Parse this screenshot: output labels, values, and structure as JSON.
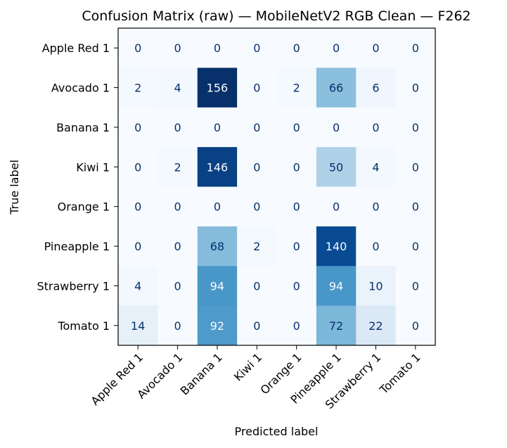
{
  "chart_data": {
    "type": "heatmap",
    "title": "Confusion Matrix (raw) — MobileNetV2 RGB Clean — F262",
    "xlabel": "Predicted label",
    "ylabel": "True label",
    "row_labels": [
      "Apple Red 1",
      "Avocado 1",
      "Banana 1",
      "Kiwi 1",
      "Orange 1",
      "Pineapple 1",
      "Strawberry 1",
      "Tomato 1"
    ],
    "col_labels": [
      "Apple Red 1",
      "Avocado 1",
      "Banana 1",
      "Kiwi 1",
      "Orange 1",
      "Pineapple 1",
      "Strawberry 1",
      "Tomato 1"
    ],
    "matrix": [
      [
        0,
        0,
        0,
        0,
        0,
        0,
        0,
        0
      ],
      [
        2,
        4,
        156,
        0,
        2,
        66,
        6,
        0
      ],
      [
        0,
        0,
        0,
        0,
        0,
        0,
        0,
        0
      ],
      [
        0,
        2,
        146,
        0,
        0,
        50,
        4,
        0
      ],
      [
        0,
        0,
        0,
        0,
        0,
        0,
        0,
        0
      ],
      [
        0,
        0,
        68,
        2,
        0,
        140,
        0,
        0
      ],
      [
        4,
        0,
        94,
        0,
        0,
        94,
        10,
        0
      ],
      [
        14,
        0,
        92,
        0,
        0,
        72,
        22,
        0
      ]
    ],
    "colormap": "Blues",
    "value_range": [
      0,
      156
    ]
  }
}
